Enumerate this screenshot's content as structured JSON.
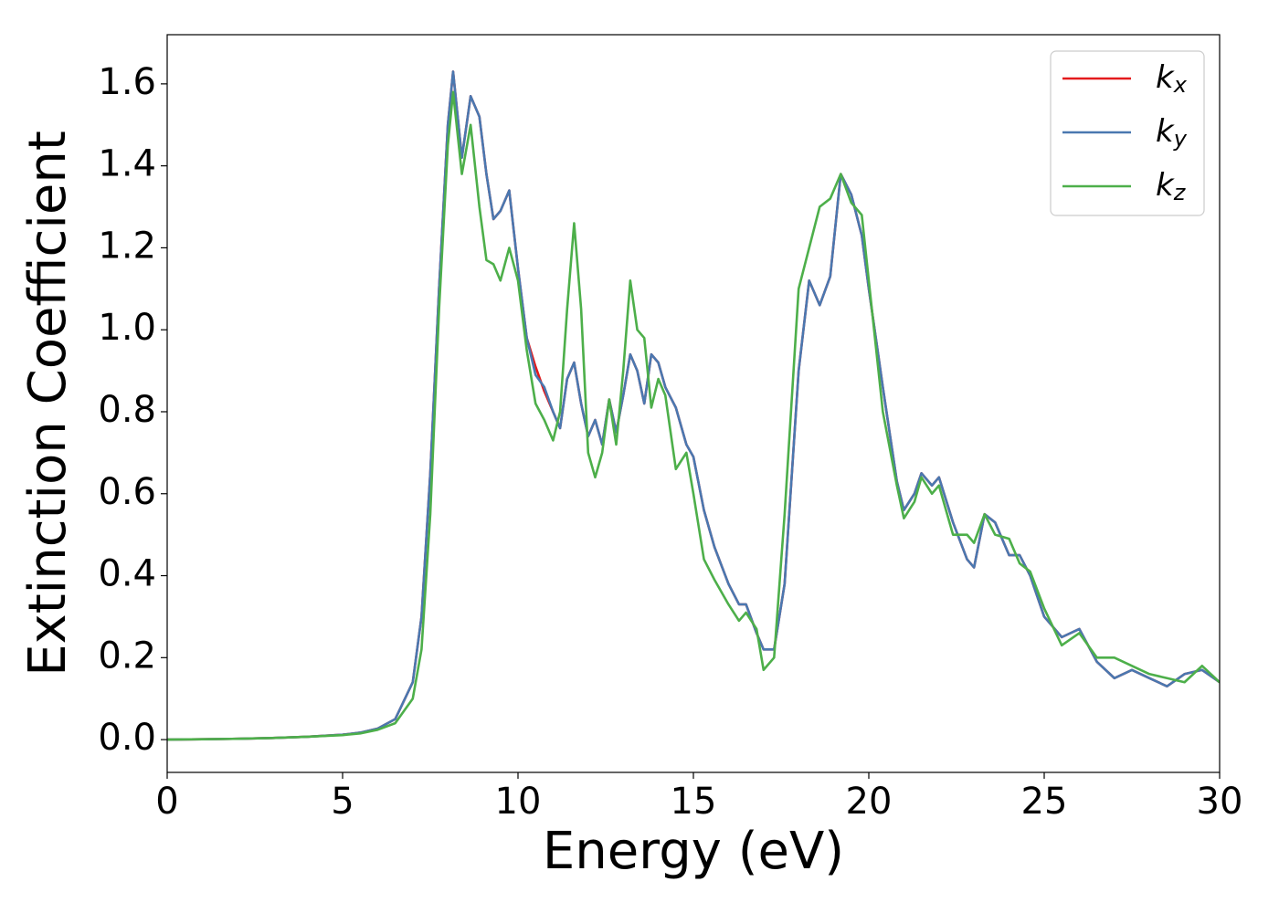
{
  "chart_data": {
    "type": "line",
    "xlabel": "Energy (eV)",
    "ylabel": "Extinction Coefficient",
    "xlim": [
      0,
      30
    ],
    "ylim": [
      -0.08,
      1.72
    ],
    "xticks": [
      0,
      5,
      10,
      15,
      20,
      25,
      30
    ],
    "yticks": [
      {
        "value": 0,
        "label": "0.0"
      },
      {
        "value": 0.2,
        "label": "0.2"
      },
      {
        "value": 0.4,
        "label": "0.4"
      },
      {
        "value": 0.6,
        "label": "0.6"
      },
      {
        "value": 0.8,
        "label": "0.8"
      },
      {
        "value": 1.0,
        "label": "1.0"
      },
      {
        "value": 1.2,
        "label": "1.2"
      },
      {
        "value": 1.4,
        "label": "1.4"
      },
      {
        "value": 1.6,
        "label": "1.6"
      }
    ],
    "grid": false,
    "legend": "upper right",
    "x": [
      0,
      1,
      2,
      3,
      4,
      5,
      5.5,
      6,
      6.5,
      7,
      7.25,
      7.5,
      7.75,
      8,
      8.15,
      8.4,
      8.65,
      8.9,
      9.1,
      9.3,
      9.5,
      9.75,
      10,
      10.25,
      10.5,
      10.75,
      11,
      11.2,
      11.4,
      11.6,
      11.8,
      12,
      12.2,
      12.4,
      12.6,
      12.8,
      13,
      13.2,
      13.4,
      13.6,
      13.8,
      14,
      14.2,
      14.5,
      14.8,
      15,
      15.3,
      15.6,
      16,
      16.3,
      16.5,
      16.8,
      17,
      17.3,
      17.6,
      18,
      18.3,
      18.6,
      18.9,
      19.2,
      19.5,
      19.8,
      20,
      20.4,
      20.8,
      21,
      21.3,
      21.5,
      21.8,
      22,
      22.4,
      22.8,
      23,
      23.3,
      23.6,
      24,
      24.3,
      24.6,
      25,
      25.5,
      26,
      26.5,
      27,
      27.5,
      28,
      28.5,
      29,
      29.5,
      30
    ],
    "series": [
      {
        "name": "kx",
        "color": "#e41a1c",
        "values": [
          0,
          0.001,
          0.002,
          0.004,
          0.007,
          0.012,
          0.017,
          0.027,
          0.05,
          0.14,
          0.3,
          0.65,
          1.1,
          1.5,
          1.63,
          1.42,
          1.57,
          1.52,
          1.38,
          1.27,
          1.29,
          1.34,
          1.15,
          0.98,
          0.91,
          0.85,
          0.8,
          0.76,
          0.88,
          0.92,
          0.82,
          0.74,
          0.78,
          0.72,
          0.83,
          0.75,
          0.84,
          0.94,
          0.9,
          0.82,
          0.94,
          0.92,
          0.86,
          0.81,
          0.72,
          0.69,
          0.56,
          0.47,
          0.38,
          0.33,
          0.33,
          0.26,
          0.22,
          0.22,
          0.38,
          0.9,
          1.12,
          1.06,
          1.13,
          1.38,
          1.33,
          1.23,
          1.1,
          0.86,
          0.63,
          0.56,
          0.6,
          0.65,
          0.62,
          0.64,
          0.53,
          0.44,
          0.42,
          0.55,
          0.53,
          0.45,
          0.45,
          0.4,
          0.3,
          0.25,
          0.27,
          0.19,
          0.15,
          0.17,
          0.15,
          0.13,
          0.16,
          0.17,
          0.14
        ]
      },
      {
        "name": "ky",
        "color": "#4a78b0",
        "values": [
          0,
          0.001,
          0.002,
          0.004,
          0.007,
          0.012,
          0.017,
          0.027,
          0.05,
          0.14,
          0.3,
          0.65,
          1.1,
          1.5,
          1.63,
          1.42,
          1.57,
          1.52,
          1.38,
          1.27,
          1.29,
          1.34,
          1.15,
          0.98,
          0.89,
          0.86,
          0.8,
          0.76,
          0.88,
          0.92,
          0.82,
          0.74,
          0.78,
          0.72,
          0.83,
          0.75,
          0.84,
          0.94,
          0.9,
          0.82,
          0.94,
          0.92,
          0.86,
          0.81,
          0.72,
          0.69,
          0.56,
          0.47,
          0.38,
          0.33,
          0.33,
          0.26,
          0.22,
          0.22,
          0.38,
          0.9,
          1.12,
          1.06,
          1.13,
          1.38,
          1.33,
          1.23,
          1.1,
          0.86,
          0.63,
          0.56,
          0.6,
          0.65,
          0.62,
          0.64,
          0.53,
          0.44,
          0.42,
          0.55,
          0.53,
          0.45,
          0.45,
          0.4,
          0.3,
          0.25,
          0.27,
          0.19,
          0.15,
          0.17,
          0.15,
          0.13,
          0.16,
          0.17,
          0.14
        ]
      },
      {
        "name": "kz",
        "color": "#4daf4a",
        "values": [
          0,
          0.001,
          0.002,
          0.004,
          0.007,
          0.011,
          0.015,
          0.024,
          0.04,
          0.1,
          0.22,
          0.55,
          1.05,
          1.45,
          1.58,
          1.38,
          1.5,
          1.3,
          1.17,
          1.16,
          1.12,
          1.2,
          1.12,
          0.95,
          0.82,
          0.78,
          0.73,
          0.8,
          1.05,
          1.26,
          1.05,
          0.7,
          0.64,
          0.7,
          0.83,
          0.72,
          0.9,
          1.12,
          1.0,
          0.98,
          0.81,
          0.88,
          0.84,
          0.66,
          0.7,
          0.6,
          0.44,
          0.39,
          0.33,
          0.29,
          0.31,
          0.27,
          0.17,
          0.2,
          0.55,
          1.1,
          1.2,
          1.3,
          1.32,
          1.38,
          1.31,
          1.28,
          1.12,
          0.8,
          0.62,
          0.54,
          0.58,
          0.64,
          0.6,
          0.62,
          0.5,
          0.5,
          0.48,
          0.55,
          0.5,
          0.49,
          0.43,
          0.41,
          0.32,
          0.23,
          0.26,
          0.2,
          0.2,
          0.18,
          0.16,
          0.15,
          0.14,
          0.18,
          0.14
        ]
      }
    ]
  }
}
